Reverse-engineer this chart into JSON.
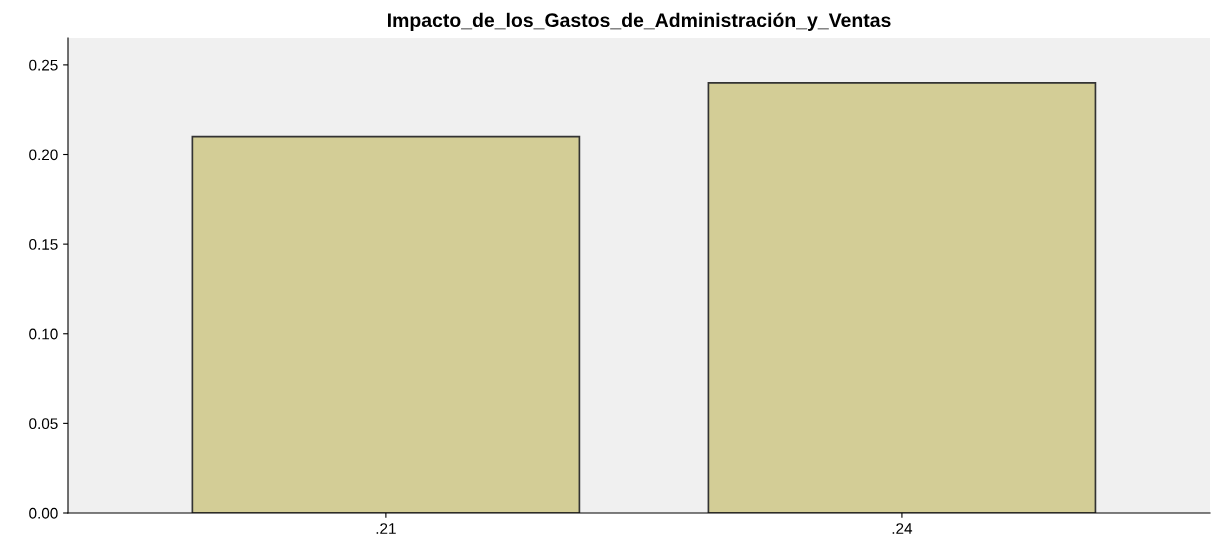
{
  "chart_data": {
    "type": "bar",
    "title": "Impacto_de_los_Gastos_de_Administración_y_Ventas",
    "categories": [
      ".21",
      ".24"
    ],
    "values": [
      0.21,
      0.24
    ],
    "color": "#d3cd96",
    "ylim": [
      0,
      0.265
    ],
    "yticks": [
      {
        "value": 0,
        "label": "0.00"
      },
      {
        "value": 0.05,
        "label": "0.05"
      },
      {
        "value": 0.1,
        "label": "0.10"
      },
      {
        "value": 0.15,
        "label": "0.15"
      },
      {
        "value": 0.2,
        "label": "0.20"
      },
      {
        "value": 0.25,
        "label": "0.25"
      }
    ],
    "grid": false
  }
}
